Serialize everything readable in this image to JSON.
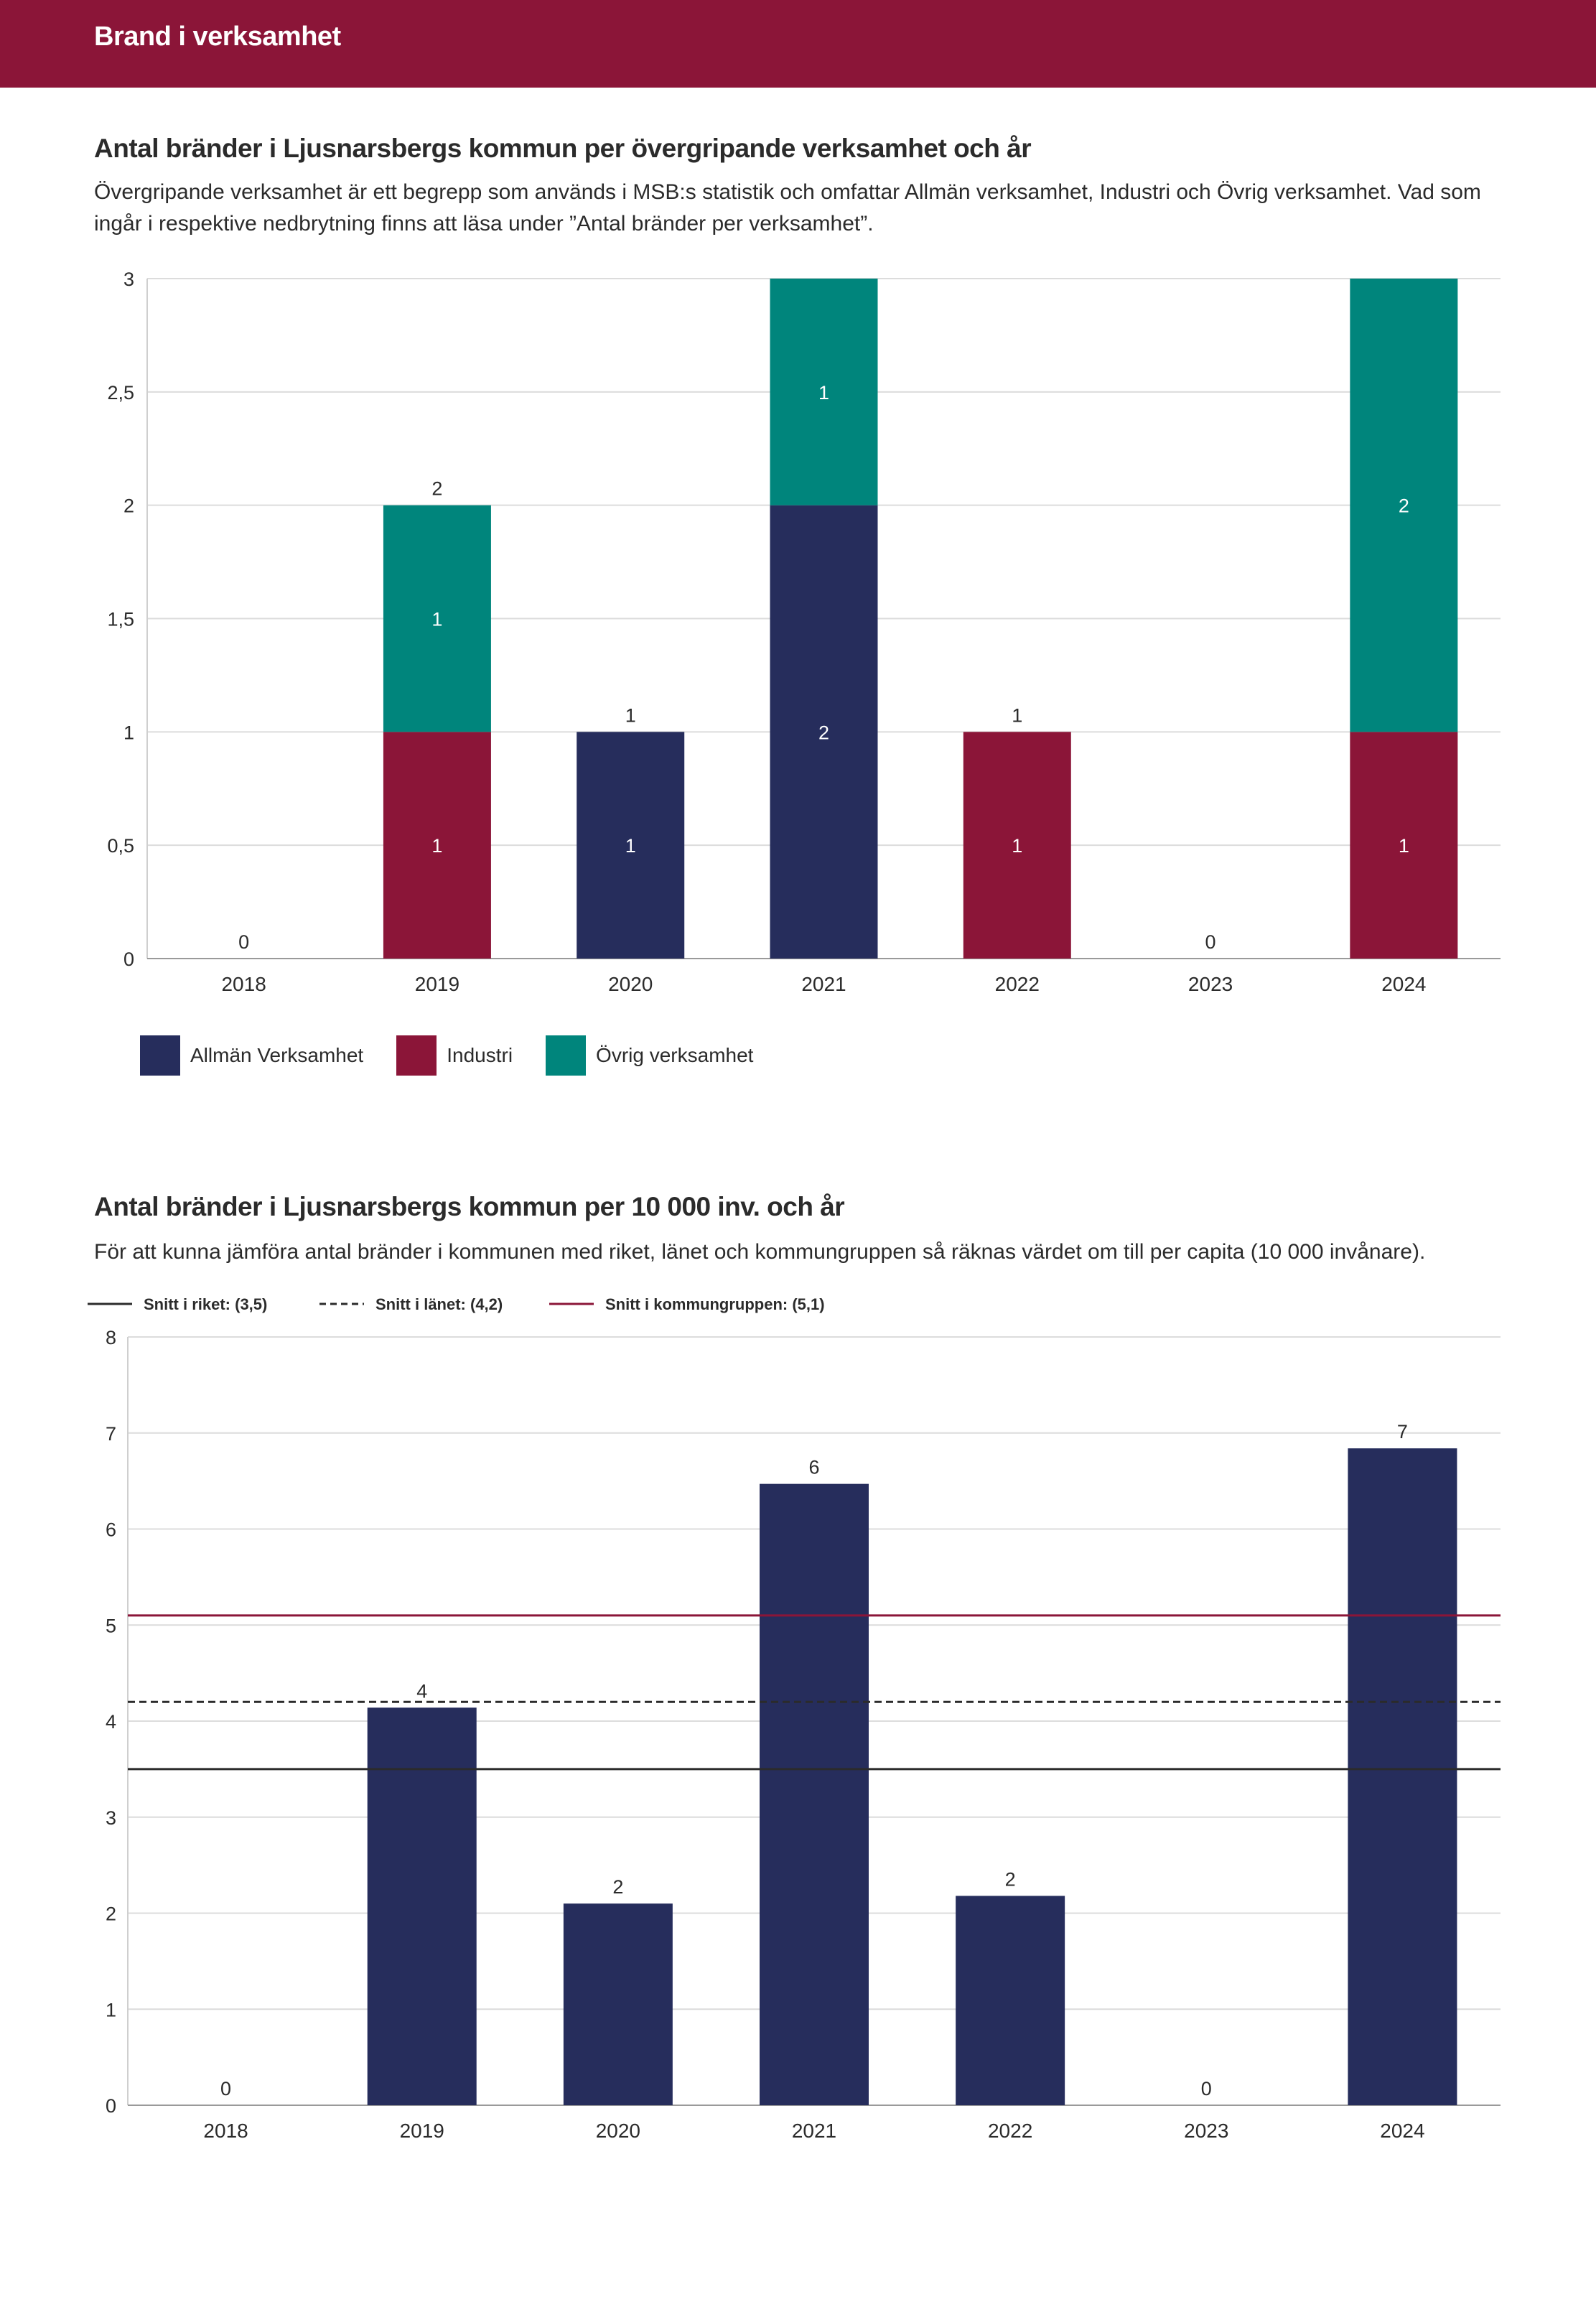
{
  "header": {
    "title": "Brand i verksamhet"
  },
  "colors": {
    "banner": "#8b1538",
    "allman": "#262d5c",
    "industri": "#8b1538",
    "ovrig": "#00857c",
    "bar2": "#262d5c",
    "riket": "#2b2b2b",
    "lanet": "#2b2b2b",
    "kommungrupp": "#8b1538"
  },
  "section1": {
    "title": "Antal bränder i Ljusnarsbergs kommun per övergripande verksamhet och år",
    "description": "Övergripande verksamhet är ett begrepp som används i MSB:s statistik och omfattar Allmän verksamhet, Industri och Övrig verksamhet. Vad som ingår i respektive nedbrytning finns att läsa under ”Antal bränder per verksamhet”."
  },
  "section2": {
    "title": "Antal bränder i Ljusnarsbergs kommun per 10 000 inv. och år",
    "description": "För att kunna jämföra antal bränder i kommunen med riket, länet och kommungruppen så räknas värdet om till per capita (10 000 invånare)."
  },
  "chart_data": [
    {
      "type": "bar",
      "stacked": true,
      "categories": [
        "2018",
        "2019",
        "2020",
        "2021",
        "2022",
        "2023",
        "2024"
      ],
      "series": [
        {
          "name": "Industri",
          "color": "#8b1538",
          "values": [
            0,
            1,
            0,
            0,
            1,
            0,
            1
          ]
        },
        {
          "name": "Allmän Verksamhet",
          "color": "#262d5c",
          "values": [
            0,
            0,
            1,
            2,
            0,
            0,
            0
          ]
        },
        {
          "name": "Övrig verksamhet",
          "color": "#00857c",
          "values": [
            0,
            1,
            0,
            1,
            0,
            0,
            2
          ]
        }
      ],
      "totals": [
        0,
        2,
        1,
        3,
        1,
        0,
        3
      ],
      "total_labels_shown": [
        true,
        true,
        true,
        false,
        true,
        true,
        false
      ],
      "legend": [
        "Allmän Verksamhet",
        "Industri",
        "Övrig verksamhet"
      ],
      "legend_colors": [
        "#262d5c",
        "#8b1538",
        "#00857c"
      ],
      "yticks": [
        "0",
        "0,5",
        "1",
        "1,5",
        "2",
        "2,5",
        "3"
      ],
      "ytick_values": [
        0,
        0.5,
        1,
        1.5,
        2,
        2.5,
        3
      ],
      "ylim": [
        0,
        3
      ],
      "grid": true,
      "legend_position": "bottom-left"
    },
    {
      "type": "bar",
      "categories": [
        "2018",
        "2019",
        "2020",
        "2021",
        "2022",
        "2023",
        "2024"
      ],
      "values": [
        0,
        4.14,
        2.1,
        6.47,
        2.18,
        0,
        6.84
      ],
      "value_labels": [
        "0",
        "4",
        "2",
        "6",
        "2",
        "0",
        "7"
      ],
      "yticks": [
        "0",
        "1",
        "2",
        "3",
        "4",
        "5",
        "6",
        "7",
        "8"
      ],
      "ytick_values": [
        0,
        1,
        2,
        3,
        4,
        5,
        6,
        7,
        8
      ],
      "ylim": [
        0,
        8
      ],
      "grid": true,
      "reference_lines": [
        {
          "name": "Snitt i riket: (3,5)",
          "value": 3.5,
          "style": "solid",
          "color": "#2b2b2b"
        },
        {
          "name": "Snitt i länet: (4,2)",
          "value": 4.2,
          "style": "dashed",
          "color": "#2b2b2b"
        },
        {
          "name": "Snitt i kommungruppen: (5,1)",
          "value": 5.1,
          "style": "solid",
          "color": "#8b1538"
        }
      ],
      "legend_position": "top-left"
    }
  ]
}
